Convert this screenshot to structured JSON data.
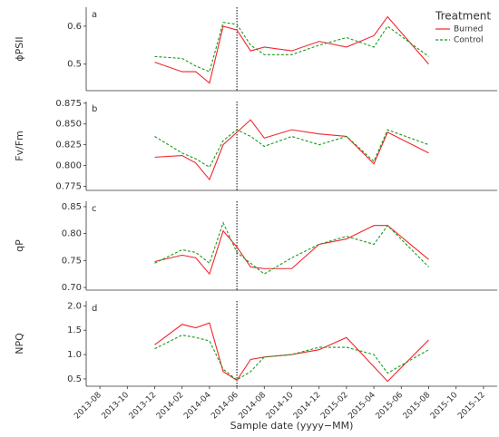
{
  "chart_data": [
    {
      "type": "line",
      "panel": "a",
      "ylabel": "ϕPSII",
      "x": [
        "2013-12",
        "2014-02",
        "2014-03",
        "2014-04",
        "2014-05",
        "2014-06",
        "2014-07",
        "2014-08",
        "2014-10",
        "2014-12",
        "2015-02",
        "2015-04",
        "2015-05",
        "2015-08"
      ],
      "xlim": [
        "2013-07",
        "2016-01"
      ],
      "vline": "2014-06",
      "ylim": [
        0.43,
        0.65
      ],
      "yticks": [
        0.5,
        0.6
      ],
      "legend": {
        "title": "Treatment",
        "position": "upper right"
      },
      "series": [
        {
          "name": "Burned",
          "color": "#f0262c",
          "dashed": false,
          "values": [
            0.505,
            0.48,
            0.48,
            0.45,
            0.6,
            0.59,
            0.535,
            0.545,
            0.535,
            0.56,
            0.545,
            0.575,
            0.625,
            0.5
          ]
        },
        {
          "name": "Control",
          "color": "#1a9a1a",
          "dashed": true,
          "values": [
            0.52,
            0.515,
            0.495,
            0.48,
            0.61,
            0.605,
            0.55,
            0.525,
            0.525,
            0.55,
            0.57,
            0.545,
            0.6,
            0.52
          ]
        }
      ]
    },
    {
      "type": "line",
      "panel": "b",
      "ylabel": "Fv/Fm",
      "x": [
        "2013-12",
        "2014-02",
        "2014-03",
        "2014-04",
        "2014-05",
        "2014-06",
        "2014-07",
        "2014-08",
        "2014-10",
        "2014-12",
        "2015-02",
        "2015-04",
        "2015-05",
        "2015-08"
      ],
      "xlim": [
        "2013-07",
        "2016-01"
      ],
      "vline": "2014-06",
      "ylim": [
        0.77,
        0.877
      ],
      "yticks": [
        0.775,
        {
          "value": 0.8,
          "label": "0.800"
        },
        0.825,
        {
          "value": 0.85,
          "label": "0.850"
        },
        0.875
      ],
      "series": [
        {
          "name": "Burned",
          "color": "#f0262c",
          "dashed": false,
          "values": [
            0.81,
            0.812,
            0.803,
            0.783,
            0.825,
            0.84,
            0.855,
            0.833,
            0.843,
            0.838,
            0.835,
            0.802,
            0.84,
            0.815
          ]
        },
        {
          "name": "Control",
          "color": "#1a9a1a",
          "dashed": true,
          "values": [
            0.835,
            0.815,
            0.808,
            0.798,
            0.83,
            0.843,
            0.835,
            0.823,
            0.835,
            0.825,
            0.835,
            0.805,
            0.843,
            0.825
          ]
        }
      ]
    },
    {
      "type": "line",
      "panel": "c",
      "ylabel": "qP",
      "x": [
        "2013-12",
        "2014-02",
        "2014-03",
        "2014-04",
        "2014-05",
        "2014-06",
        "2014-07",
        "2014-08",
        "2014-10",
        "2014-12",
        "2015-02",
        "2015-04",
        "2015-05",
        "2015-08"
      ],
      "xlim": [
        "2013-07",
        "2016-01"
      ],
      "vline": "2014-06",
      "ylim": [
        0.695,
        0.86
      ],
      "yticks": [
        {
          "value": 0.7,
          "label": "0.70"
        },
        0.75,
        {
          "value": 0.8,
          "label": "0.80"
        },
        0.85
      ],
      "series": [
        {
          "name": "Burned",
          "color": "#f0262c",
          "dashed": false,
          "values": [
            0.748,
            0.76,
            0.755,
            0.725,
            0.805,
            0.775,
            0.738,
            0.735,
            0.735,
            0.78,
            0.79,
            0.815,
            0.815,
            0.752
          ]
        },
        {
          "name": "Control",
          "color": "#1a9a1a",
          "dashed": true,
          "values": [
            0.745,
            0.77,
            0.765,
            0.745,
            0.82,
            0.765,
            0.745,
            0.725,
            0.755,
            0.78,
            0.795,
            0.78,
            0.815,
            0.738
          ]
        }
      ]
    },
    {
      "type": "line",
      "panel": "d",
      "ylabel": "NPQ",
      "xlabel": "Sample date (yyyy−MM)",
      "x": [
        "2013-12",
        "2014-02",
        "2014-03",
        "2014-04",
        "2014-05",
        "2014-06",
        "2014-07",
        "2014-08",
        "2014-10",
        "2014-12",
        "2015-02",
        "2015-04",
        "2015-05",
        "2015-08"
      ],
      "xlim": [
        "2013-07",
        "2016-01"
      ],
      "vline": "2014-06",
      "xticks": [
        "2013-08",
        "2013-10",
        "2013-12",
        "2014-02",
        "2014-04",
        "2014-06",
        "2014-08",
        "2014-10",
        "2014-12",
        "2015-02",
        "2015-04",
        "2015-06",
        "2015-08",
        "2015-10",
        "2015-12"
      ],
      "ylim": [
        0.35,
        2.1
      ],
      "yticks": [
        0.5,
        {
          "value": 1,
          "label": "1.0"
        },
        1.5,
        {
          "value": 2,
          "label": "2.0"
        }
      ],
      "series": [
        {
          "name": "Burned",
          "color": "#f0262c",
          "dashed": false,
          "values": [
            1.2,
            1.62,
            1.55,
            1.65,
            0.65,
            0.47,
            0.9,
            0.95,
            1,
            1.1,
            1.35,
            0.75,
            0.45,
            1.3
          ]
        },
        {
          "name": "Control",
          "color": "#1a9a1a",
          "dashed": true,
          "values": [
            1.12,
            1.4,
            1.35,
            1.28,
            0.7,
            0.48,
            0.65,
            0.95,
            1,
            1.15,
            1.15,
            1,
            0.62,
            1.1
          ]
        }
      ]
    }
  ]
}
